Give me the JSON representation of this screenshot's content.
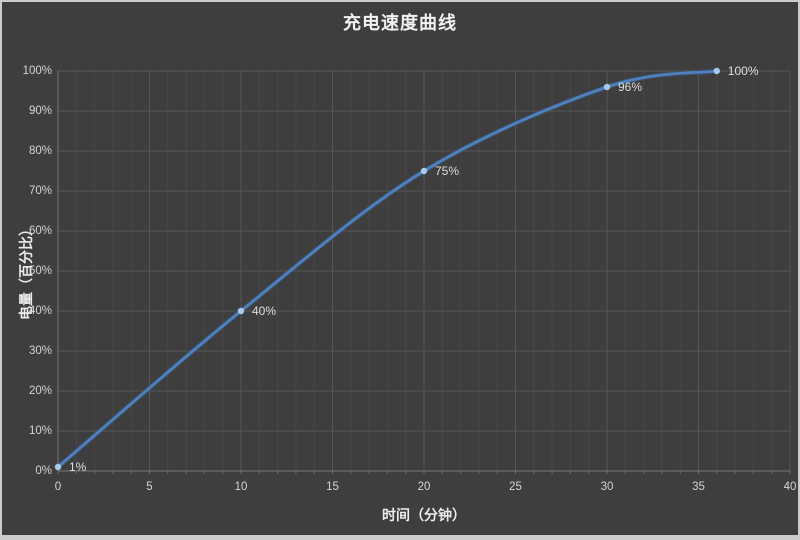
{
  "window": {
    "border_color": "#cbcbcb",
    "background_color": "#3e3e3e"
  },
  "chart_data": {
    "type": "line",
    "title": "充电速度曲线",
    "xlabel": "时间（分钟）",
    "ylabel": "电量（百分比）",
    "xlim": [
      0,
      40
    ],
    "ylim": [
      0,
      100
    ],
    "grid": true,
    "legend_position": "none",
    "x_axis": {
      "tick_labels": [
        "0",
        "5",
        "10",
        "15",
        "20",
        "25",
        "30",
        "35",
        "40"
      ],
      "major_step": 5,
      "minor_step": 1
    },
    "y_axis": {
      "tick_labels": [
        "0%",
        "10%",
        "20%",
        "30%",
        "40%",
        "50%",
        "60%",
        "70%",
        "80%",
        "90%",
        "100%"
      ],
      "major_step": 10
    },
    "series": [
      {
        "points": [
          {
            "x": 0,
            "y": 1,
            "label": "1%"
          },
          {
            "x": 10,
            "y": 40,
            "label": "40%"
          },
          {
            "x": 20,
            "y": 75,
            "label": "75%"
          },
          {
            "x": 30,
            "y": 96,
            "label": "96%"
          },
          {
            "x": 36,
            "y": 100,
            "label": "100%"
          }
        ]
      }
    ],
    "colors": {
      "line": "#4e81be",
      "line_glow": "#37608f",
      "marker": "#a9c9ea",
      "grid_major": "#565656",
      "grid_minor": "#484848",
      "axis": "#767676",
      "tick_mark": "#6a6a6a",
      "title_text": "#f2f2f2",
      "tick_text": "#d4d4d4",
      "data_label_text": "#dedede"
    }
  }
}
